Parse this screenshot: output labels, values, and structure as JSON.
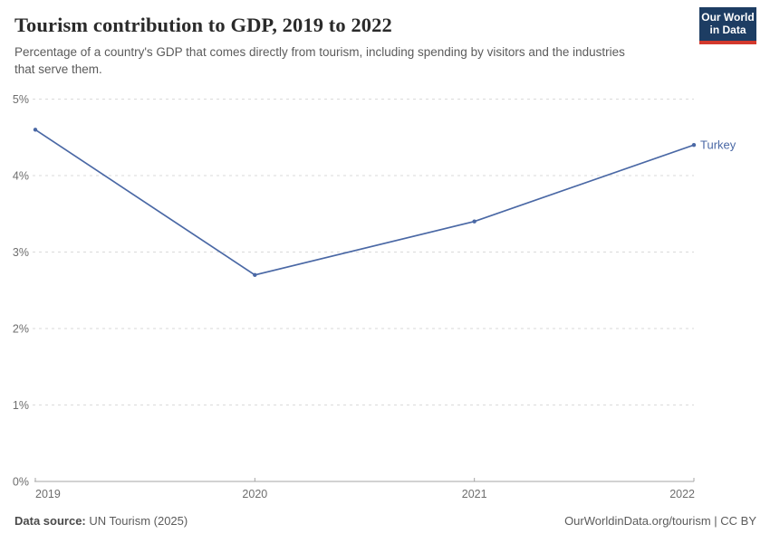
{
  "header": {
    "title": "Tourism contribution to GDP, 2019 to 2022",
    "subtitle": "Percentage of a country's GDP that comes directly from tourism, including spending by visitors and the industries that serve them.",
    "logo": {
      "line1": "Our World",
      "line2": "in Data",
      "bg_color": "#1d3d63",
      "accent_color": "#d3392d"
    }
  },
  "chart_data": {
    "type": "line",
    "title": "Tourism contribution to GDP, 2019 to 2022",
    "x": [
      2019,
      2020,
      2021,
      2022
    ],
    "series": [
      {
        "name": "Turkey",
        "values": [
          4.6,
          2.7,
          3.4,
          4.4
        ],
        "color": "#4a68a5"
      }
    ],
    "xlabel": "",
    "ylabel": "",
    "ylim": [
      0,
      5
    ],
    "ytick_step": 1,
    "ytick_suffix": "%",
    "grid": "horizontal-dashed",
    "legend_position": "end-of-line-label"
  },
  "footer": {
    "datasource_label": "Data source:",
    "datasource_value": " UN Tourism (2025)",
    "right_text": "OurWorldinData.org/tourism | CC BY"
  }
}
